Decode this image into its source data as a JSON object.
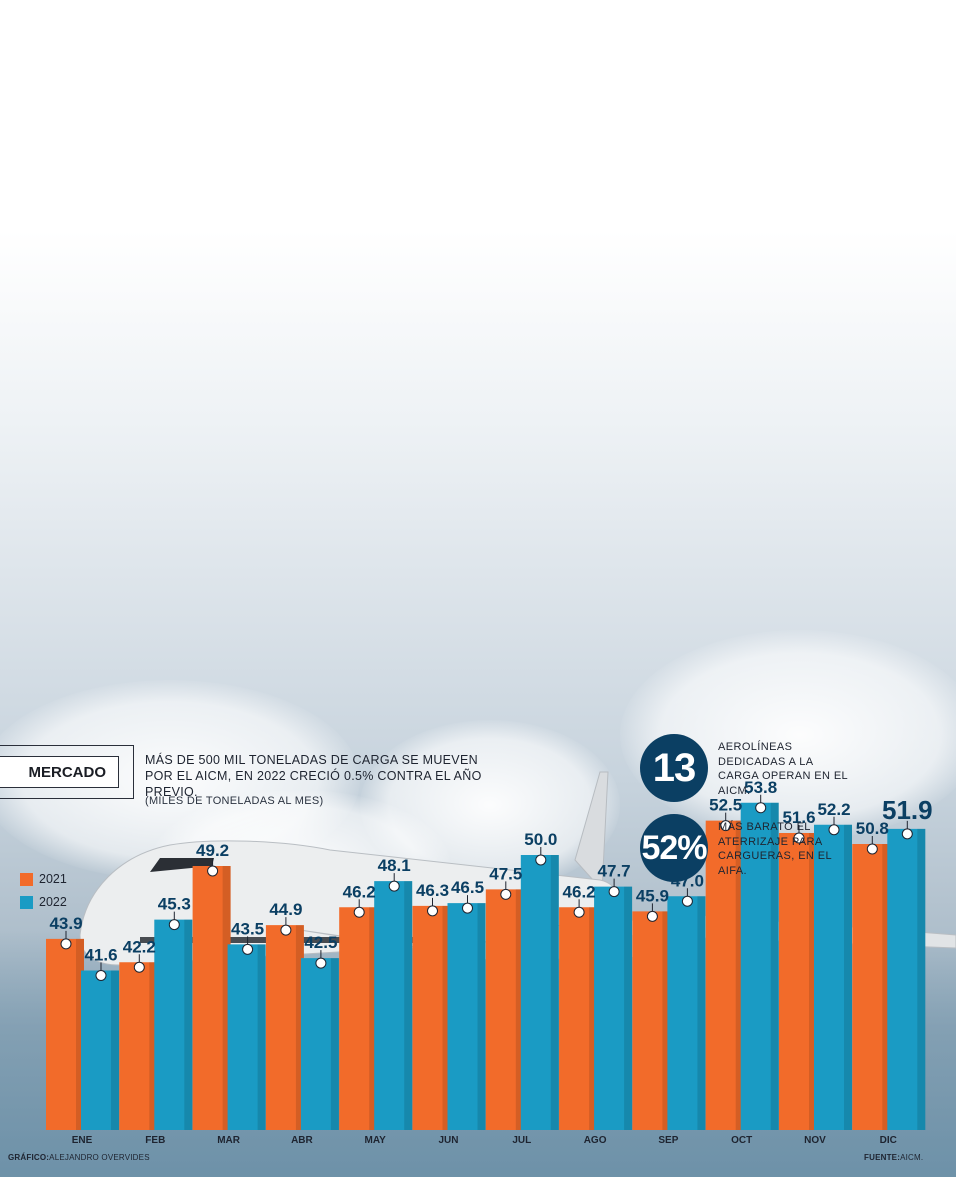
{
  "header": {
    "section": "MERCADO",
    "headline": "MÁS DE 500 MIL TONELADAS DE CARGA SE MUEVEN POR EL AICM, EN 2022 CRECIÓ 0.5% CONTRA EL AÑO PREVIO.",
    "units": "(MILES DE TONELADAS AL MES)"
  },
  "stats": [
    {
      "value": "13",
      "text": "AEROLÍNEAS DEDICADAS A LA CARGA OPERAN EN EL AICM."
    },
    {
      "value": "52%",
      "text": "MÁS BARATO EL ATERRIZAJE PARA CARGUERAS, EN EL AIFA."
    }
  ],
  "legend": [
    {
      "label": "2021",
      "color": "#f26b2a"
    },
    {
      "label": "2022",
      "color": "#1a9bc4"
    }
  ],
  "footer": {
    "credit_label": "GRÁFICO:",
    "credit_name": "ALEJANDRO OVERVIDES",
    "source_label": "FUENTE:",
    "source_name": "AICM."
  },
  "colors": {
    "orange": "#f26b2a",
    "blue": "#1a9bc4",
    "label": "#0b3f63"
  },
  "chart_data": {
    "type": "bar",
    "title": "",
    "categories": [
      "ENE",
      "FEB",
      "MAR",
      "ABR",
      "MAY",
      "JUN",
      "JUL",
      "AGO",
      "SEP",
      "OCT",
      "NOV",
      "DIC"
    ],
    "series": [
      {
        "name": "2021",
        "values": [
          43.9,
          42.2,
          49.2,
          44.9,
          46.2,
          46.3,
          47.5,
          46.2,
          45.9,
          52.5,
          51.6,
          50.8
        ]
      },
      {
        "name": "2022",
        "values": [
          41.6,
          45.3,
          43.5,
          42.5,
          48.1,
          46.5,
          50.0,
          47.7,
          47.0,
          53.8,
          52.2,
          51.9
        ]
      }
    ],
    "value_labels": [
      [
        "43.9",
        "42.2",
        "49.2",
        "44.9",
        "46.2",
        "46.3",
        "47.5",
        "46.2",
        "45.9",
        "52.5",
        "51.6",
        "50.8"
      ],
      [
        "41.6",
        "45.3",
        "43.5",
        "42.5",
        "48.1",
        "46.5",
        "50.0",
        "47.7",
        "47.0",
        "53.8",
        "52.2",
        "51.9"
      ]
    ],
    "ylim": [
      30,
      54
    ],
    "xlabel": "",
    "ylabel": "",
    "grid": false,
    "legend_position": "left"
  }
}
